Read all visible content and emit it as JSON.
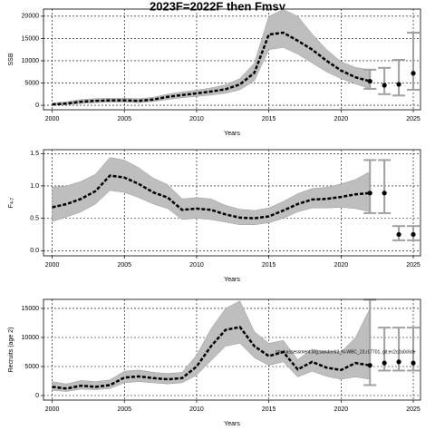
{
  "title": "2023F=2022F then Fmsy",
  "chart_data": [
    {
      "type": "line",
      "ylabel": "SSB",
      "xlabel": "Years",
      "x": [
        2000,
        2001,
        2002,
        2003,
        2004,
        2005,
        2006,
        2007,
        2008,
        2009,
        2010,
        2011,
        2012,
        2013,
        2014,
        2015,
        2016,
        2017,
        2018,
        2019,
        2020,
        2021,
        2022
      ],
      "values": [
        200,
        400,
        800,
        1000,
        1100,
        1100,
        1000,
        1300,
        1900,
        2300,
        2700,
        3100,
        3600,
        4700,
        7300,
        15900,
        16300,
        14500,
        12500,
        10000,
        7800,
        6300,
        5400
      ],
      "lower": [
        0,
        150,
        400,
        600,
        700,
        700,
        600,
        850,
        1300,
        1700,
        2000,
        2300,
        2700,
        3500,
        5500,
        12500,
        13000,
        11500,
        9500,
        7500,
        6000,
        4800,
        3700
      ],
      "upper": [
        500,
        800,
        1300,
        1500,
        1600,
        1600,
        1500,
        1800,
        2500,
        3000,
        3400,
        3900,
        4600,
        6000,
        9500,
        20000,
        21500,
        20000,
        16000,
        12500,
        9800,
        8500,
        8000
      ],
      "points": {
        "x": [
          2022,
          2023,
          2024,
          2025
        ],
        "values": [
          5400,
          4500,
          4700,
          7200
        ],
        "low": [
          3700,
          2500,
          2200,
          3500
        ],
        "high": [
          8000,
          8400,
          10200,
          16300
        ]
      },
      "color": "#000000",
      "band_color": "#bebebe",
      "errorbar_color": "#a0a0a0",
      "xlim": [
        1999.4,
        2025.5
      ],
      "xticks": [
        2000,
        2005,
        2010,
        2015,
        2020,
        2025
      ],
      "ylim": [
        -1000,
        21600
      ],
      "yticks": [
        0,
        5000,
        10000,
        15000,
        20000
      ],
      "grid": true
    },
    {
      "type": "line",
      "ylabel": "F",
      "ylabel_sub": "4-7",
      "xlabel": "Years",
      "x": [
        2000,
        2001,
        2002,
        2003,
        2004,
        2005,
        2006,
        2007,
        2008,
        2009,
        2010,
        2011,
        2012,
        2013,
        2014,
        2015,
        2016,
        2017,
        2018,
        2019,
        2020,
        2021,
        2022
      ],
      "values": [
        0.67,
        0.72,
        0.8,
        0.92,
        1.16,
        1.13,
        1.03,
        0.9,
        0.82,
        0.63,
        0.65,
        0.63,
        0.56,
        0.51,
        0.5,
        0.53,
        0.62,
        0.72,
        0.79,
        0.8,
        0.83,
        0.87,
        0.89
      ],
      "lower": [
        0.45,
        0.52,
        0.6,
        0.72,
        0.93,
        0.9,
        0.82,
        0.72,
        0.65,
        0.48,
        0.5,
        0.48,
        0.44,
        0.4,
        0.4,
        0.43,
        0.5,
        0.6,
        0.66,
        0.66,
        0.67,
        0.65,
        0.6
      ],
      "upper": [
        0.98,
        1.0,
        1.07,
        1.18,
        1.44,
        1.4,
        1.28,
        1.12,
        1.02,
        0.8,
        0.82,
        0.8,
        0.7,
        0.64,
        0.62,
        0.66,
        0.76,
        0.88,
        0.96,
        0.98,
        1.03,
        1.1,
        1.22
      ],
      "points": {
        "x": [
          2022,
          2023,
          2024,
          2025
        ],
        "values": [
          0.89,
          0.89,
          0.25,
          0.25
        ],
        "low": [
          0.58,
          0.58,
          0.16,
          0.16
        ],
        "high": [
          1.4,
          1.4,
          0.38,
          0.38
        ]
      },
      "color": "#000000",
      "band_color": "#bebebe",
      "errorbar_color": "#a0a0a0",
      "xlim": [
        1999.4,
        2025.5
      ],
      "xticks": [
        2000,
        2005,
        2010,
        2015,
        2020,
        2025
      ],
      "ylim": [
        -0.08,
        1.56
      ],
      "yticks": [
        {
          "value": 0,
          "label": "0.0"
        },
        {
          "value": 0.5,
          "label": "0.5"
        },
        {
          "value": 1,
          "label": "1.0"
        },
        {
          "value": 1.5,
          "label": "1.5"
        }
      ],
      "grid": true
    },
    {
      "type": "line",
      "ylabel": "Recruits (age 2)",
      "xlabel": "Years",
      "x": [
        2000,
        2001,
        2002,
        2003,
        2004,
        2005,
        2006,
        2007,
        2008,
        2009,
        2010,
        2011,
        2012,
        2013,
        2014,
        2015,
        2016,
        2017,
        2018,
        2019,
        2020,
        2021,
        2022
      ],
      "values": [
        1500,
        1200,
        1700,
        1500,
        1800,
        3100,
        3300,
        3000,
        2800,
        3000,
        5000,
        8500,
        11300,
        11800,
        8500,
        6800,
        7500,
        4500,
        5800,
        4800,
        4400,
        5600,
        5200
      ],
      "lower": [
        900,
        700,
        1100,
        1000,
        1200,
        2200,
        2400,
        2200,
        2000,
        2200,
        3500,
        6000,
        8500,
        9000,
        6500,
        5200,
        5800,
        3200,
        4200,
        3300,
        2800,
        3200,
        2800
      ],
      "upper": [
        2400,
        2000,
        2600,
        2400,
        2700,
        4200,
        4400,
        4000,
        3800,
        4000,
        7000,
        11500,
        15000,
        16300,
        11000,
        9000,
        9500,
        6200,
        8000,
        7500,
        7500,
        10000,
        15000
      ],
      "points": {
        "x": [
          2022,
          2023,
          2024,
          2025
        ],
        "values": [
          5200,
          5600,
          5800,
          5600
        ],
        "low": [
          1800,
          4300,
          4300,
          4300
        ],
        "high": [
          16500,
          11700,
          11700,
          11700
        ]
      },
      "color": "#000000",
      "band_color": "#bebebe",
      "errorbar_color": "#a0a0a0",
      "xlim": [
        1999.4,
        2025.5
      ],
      "xticks": [
        2000,
        2005,
        2010,
        2015,
        2020,
        2025
      ],
      "ylim": [
        -780,
        16560
      ],
      "yticks": [
        0,
        5000,
        10000,
        15000
      ],
      "grid": true,
      "annotation": "stockassessment.org,sandeelr3_N-WBC_23,r17701, git:ec2c2a0c6de"
    }
  ]
}
